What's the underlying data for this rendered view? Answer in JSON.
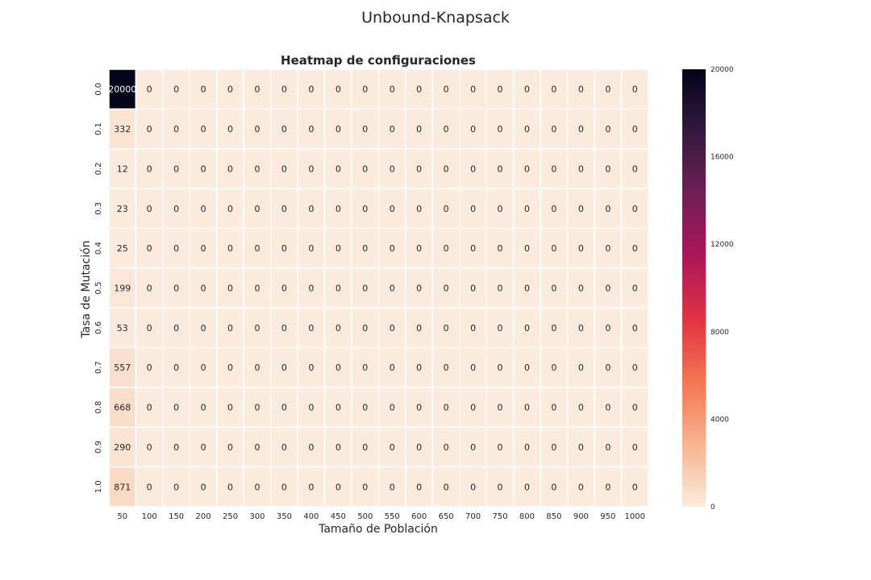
{
  "figure": {
    "suptitle": "Unbound-Knapsack"
  },
  "chart_data": {
    "type": "heatmap",
    "title": "Heatmap de configuraciones",
    "xlabel": "Tamaño de Población",
    "ylabel": "Tasa de Mutación",
    "x_categories": [
      "50",
      "100",
      "150",
      "200",
      "250",
      "300",
      "350",
      "400",
      "450",
      "500",
      "550",
      "600",
      "650",
      "700",
      "750",
      "800",
      "850",
      "900",
      "950",
      "1000"
    ],
    "y_categories": [
      "0.0",
      "0.1",
      "0.2",
      "0.3",
      "0.4",
      "0.5",
      "0.6",
      "0.7",
      "0.8",
      "0.9",
      "1.0"
    ],
    "values": [
      [
        20000,
        0,
        0,
        0,
        0,
        0,
        0,
        0,
        0,
        0,
        0,
        0,
        0,
        0,
        0,
        0,
        0,
        0,
        0,
        0
      ],
      [
        332,
        0,
        0,
        0,
        0,
        0,
        0,
        0,
        0,
        0,
        0,
        0,
        0,
        0,
        0,
        0,
        0,
        0,
        0,
        0
      ],
      [
        12,
        0,
        0,
        0,
        0,
        0,
        0,
        0,
        0,
        0,
        0,
        0,
        0,
        0,
        0,
        0,
        0,
        0,
        0,
        0
      ],
      [
        23,
        0,
        0,
        0,
        0,
        0,
        0,
        0,
        0,
        0,
        0,
        0,
        0,
        0,
        0,
        0,
        0,
        0,
        0,
        0
      ],
      [
        25,
        0,
        0,
        0,
        0,
        0,
        0,
        0,
        0,
        0,
        0,
        0,
        0,
        0,
        0,
        0,
        0,
        0,
        0,
        0
      ],
      [
        199,
        0,
        0,
        0,
        0,
        0,
        0,
        0,
        0,
        0,
        0,
        0,
        0,
        0,
        0,
        0,
        0,
        0,
        0,
        0
      ],
      [
        53,
        0,
        0,
        0,
        0,
        0,
        0,
        0,
        0,
        0,
        0,
        0,
        0,
        0,
        0,
        0,
        0,
        0,
        0,
        0
      ],
      [
        557,
        0,
        0,
        0,
        0,
        0,
        0,
        0,
        0,
        0,
        0,
        0,
        0,
        0,
        0,
        0,
        0,
        0,
        0,
        0
      ],
      [
        668,
        0,
        0,
        0,
        0,
        0,
        0,
        0,
        0,
        0,
        0,
        0,
        0,
        0,
        0,
        0,
        0,
        0,
        0,
        0
      ],
      [
        290,
        0,
        0,
        0,
        0,
        0,
        0,
        0,
        0,
        0,
        0,
        0,
        0,
        0,
        0,
        0,
        0,
        0,
        0,
        0
      ],
      [
        871,
        0,
        0,
        0,
        0,
        0,
        0,
        0,
        0,
        0,
        0,
        0,
        0,
        0,
        0,
        0,
        0,
        0,
        0,
        0
      ]
    ],
    "annotated": true,
    "colormap": "rocket_r",
    "colormap_stops": [
      "#faebdd",
      "#f6b48f",
      "#f37651",
      "#e13342",
      "#ad1759",
      "#701f57",
      "#35193e",
      "#03051a"
    ],
    "vmin": 0,
    "vmax": 20000,
    "colorbar_ticks": [
      0,
      4000,
      8000,
      12000,
      16000,
      20000
    ],
    "colorbar_placement": "right",
    "cell_separator_color": "#ffffff"
  }
}
